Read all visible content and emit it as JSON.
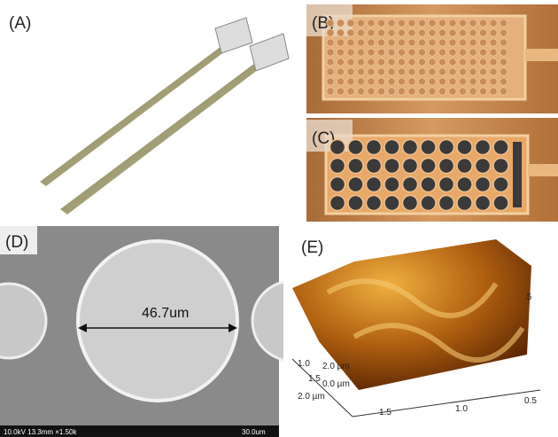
{
  "panels": [
    {
      "label": "(A)"
    },
    {
      "label": "(B)"
    },
    {
      "label": "(C)"
    },
    {
      "label": "(D)",
      "measurement": "46.7um",
      "info_bar": "10.0kV 13.3mm ×1.50k",
      "scale_bar": "30.0um"
    },
    {
      "label": "(E)",
      "axis_labels": [
        ".5",
        "1.0",
        "2.0 µm",
        "1.5",
        "0.0 µm",
        "2.0 µm",
        "1.5",
        "1.0",
        "0.5"
      ]
    }
  ]
}
